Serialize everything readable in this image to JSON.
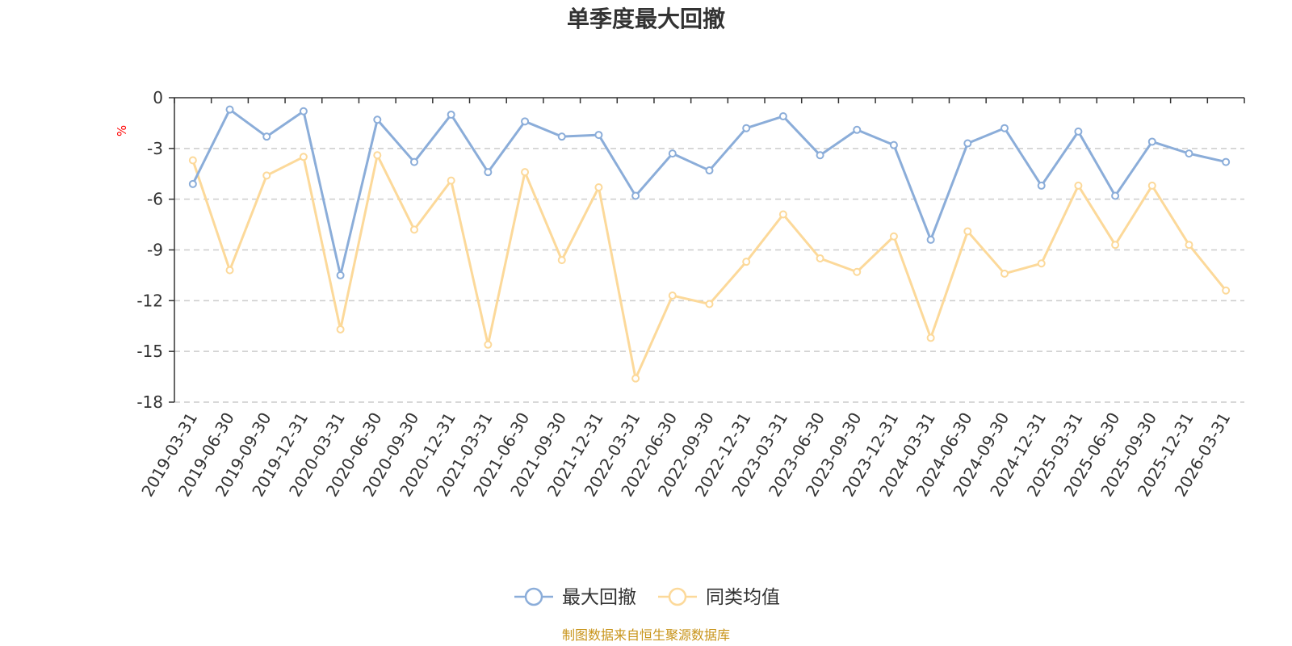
{
  "chart_data": {
    "type": "line",
    "title": "单季度最大回撤",
    "ylabel": "%",
    "ylim": [
      -18,
      0
    ],
    "yticks": [
      "0",
      "-3",
      "-6",
      "-9",
      "-12",
      "-15",
      "-18"
    ],
    "grid": true,
    "legend_position": "bottom-center",
    "categories": [
      "2019-03-31",
      "2019-06-30",
      "2019-09-30",
      "2019-12-31",
      "2020-03-31",
      "2020-06-30",
      "2020-09-30",
      "2020-12-31",
      "2021-03-31",
      "2021-06-30",
      "2021-09-30",
      "2021-12-31",
      "2022-03-31",
      "2022-06-30",
      "2022-09-30",
      "2022-12-31",
      "2023-03-31",
      "2023-06-30",
      "2023-09-30",
      "2023-12-31",
      "2024-03-31",
      "2024-06-30",
      "2024-09-30",
      "2024-12-31",
      "2025-03-31",
      "2025-06-30",
      "2025-09-30",
      "2025-12-31",
      "2026-03-31"
    ],
    "series": [
      {
        "name": "最大回撤",
        "color": "#8badd9",
        "values": [
          -5.1,
          -0.7,
          -2.3,
          -0.8,
          -10.5,
          -1.3,
          -3.8,
          -1.0,
          -4.4,
          -1.4,
          -2.3,
          -2.2,
          -5.8,
          -3.3,
          -4.3,
          -1.8,
          -1.1,
          -3.4,
          -1.9,
          -2.8,
          -8.4,
          -2.7,
          -1.8,
          -5.2,
          -2.0,
          -5.8,
          -2.6,
          -3.3,
          -3.8
        ]
      },
      {
        "name": "同类均值",
        "color": "#fcd99a",
        "values": [
          -3.7,
          -10.2,
          -4.6,
          -3.5,
          -13.7,
          -3.4,
          -7.8,
          -4.9,
          -14.6,
          -4.4,
          -9.6,
          -5.3,
          -16.6,
          -11.7,
          -12.2,
          -9.7,
          -6.9,
          -9.5,
          -10.3,
          -8.2,
          -14.2,
          -7.9,
          -10.4,
          -9.8,
          -5.2,
          -8.7,
          -5.2,
          -8.7,
          -11.4
        ]
      }
    ]
  },
  "footer": {
    "source_text": "制图数据来自恒生聚源数据库"
  }
}
